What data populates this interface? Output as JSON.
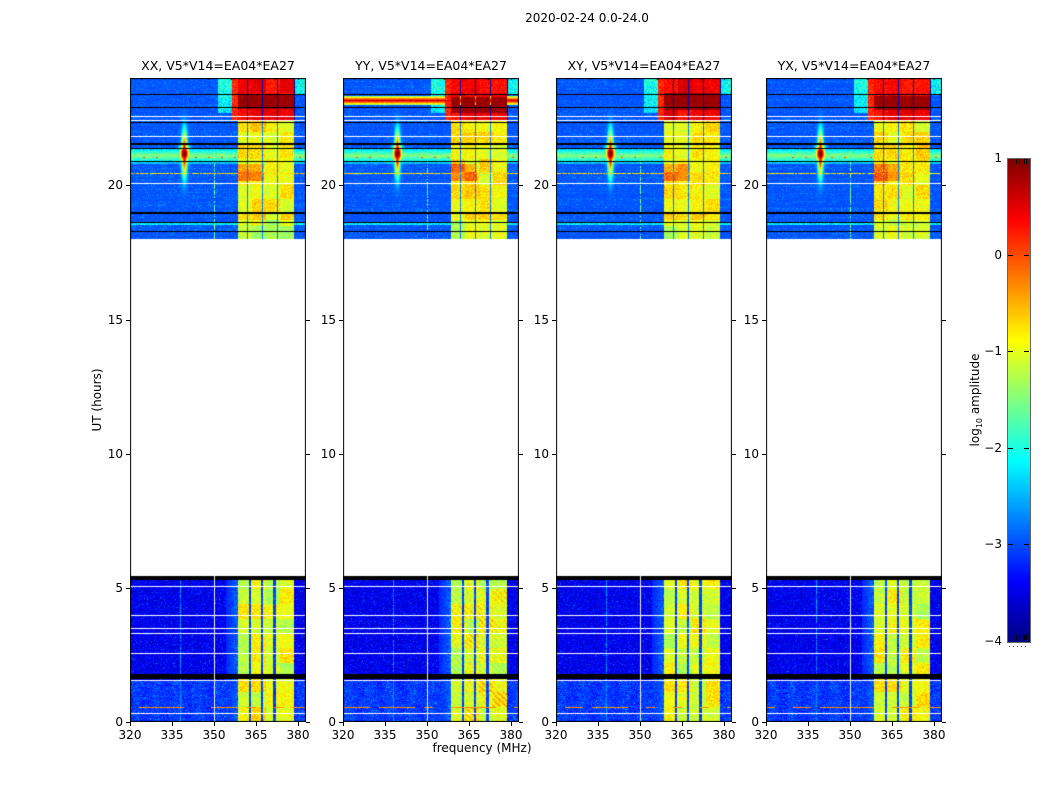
{
  "chart_data": {
    "type": "heatmap",
    "title": "2020-02-24 0.0-24.0",
    "date": "2020-02-24",
    "ut_range_hours": [
      0.0,
      24.0
    ],
    "xlabel": "frequency (MHz)",
    "ylabel": "UT (hours)",
    "x_range_mhz": [
      320,
      383
    ],
    "y_range_hours": [
      0,
      24
    ],
    "x_ticks": [
      320,
      335,
      350,
      365,
      380
    ],
    "y_ticks": [
      0,
      5,
      10,
      15,
      20
    ],
    "x_tick_labels": [
      "320",
      "335",
      "350",
      "365",
      "380"
    ],
    "y_tick_labels": [
      "0",
      "5",
      "10",
      "15",
      "20"
    ],
    "cbar_tick_labels": [
      "1",
      "0",
      "−1",
      "−2",
      "−3",
      "−4"
    ],
    "baseline": "V5*V14=EA04*EA27",
    "antennas": [
      "EA04",
      "EA27"
    ],
    "polarizations": [
      "XX",
      "YY",
      "XY",
      "YX"
    ],
    "colorbar": {
      "label": "log10 amplitude",
      "label_parts": {
        "prefix": "log",
        "sub": "10",
        "suffix": " amplitude"
      },
      "ticks": [
        1,
        0,
        -1,
        -2,
        -3,
        -4
      ],
      "vmin": -4,
      "vmax": 1,
      "colormap": "jet"
    },
    "panels": [
      {
        "title": "XX, V5*V14=EA04*EA27",
        "pol": "XX",
        "seed": 11,
        "dark_rows_hours": [
          22.85,
          23.42
        ],
        "streak": false
      },
      {
        "title": "YY, V5*V14=EA04*EA27",
        "pol": "YY",
        "seed": 23,
        "dark_rows_hours": [
          22.7,
          23.3
        ],
        "streak": true,
        "streak_hours": [
          23.0,
          23.32
        ]
      },
      {
        "title": "XY, V5*V14=EA04*EA27",
        "pol": "XY",
        "seed": 37,
        "dark_rows_hours": [
          22.82,
          23.45
        ],
        "streak": false
      },
      {
        "title": "YX, V5*V14=EA04*EA27",
        "pol": "YX",
        "seed": 51,
        "dark_rows_hours": [
          22.8,
          23.32
        ],
        "streak": false
      }
    ],
    "features": {
      "observed_time_blocks_hours": [
        [
          0.0,
          5.45
        ],
        [
          18.0,
          24.0
        ]
      ],
      "no_data_gap_hours": [
        5.45,
        18.0
      ],
      "rfi_band_mhz": [
        358.5,
        378.6
      ],
      "rfi_notches_mhz": [
        362.9,
        367.3,
        371.7
      ],
      "strong_rfi_time_hours": [
        22.45,
        24.0
      ],
      "burst": {
        "freq_mhz": 339.5,
        "time_hours": 21.15,
        "amplitude_log10": 1.0
      },
      "green_band_hours": [
        20.85,
        21.4
      ],
      "narrow_vline_mhz": 350.2,
      "faint_vline_mhz": 338.0,
      "white_hlines_low_hours": [
        5.08,
        3.98,
        3.52,
        3.33,
        2.58,
        1.55,
        0.33
      ],
      "black_bands_low_hours": [
        [
          5.28,
          5.45
        ],
        [
          1.6,
          1.78
        ]
      ],
      "white_hlines_high_hours": [
        22.57,
        22.45,
        21.85,
        20.08
      ],
      "black_hlines_high_hours": [
        23.42,
        22.92,
        22.35,
        21.57,
        21.4,
        20.9,
        19.02,
        18.62,
        18.28
      ],
      "red_hline_low_hours": 0.55,
      "red_hline_high_hours": 20.45,
      "subband_edge_marks_mhz": [
        324,
        332,
        340,
        348,
        356,
        364,
        372,
        380
      ]
    }
  }
}
